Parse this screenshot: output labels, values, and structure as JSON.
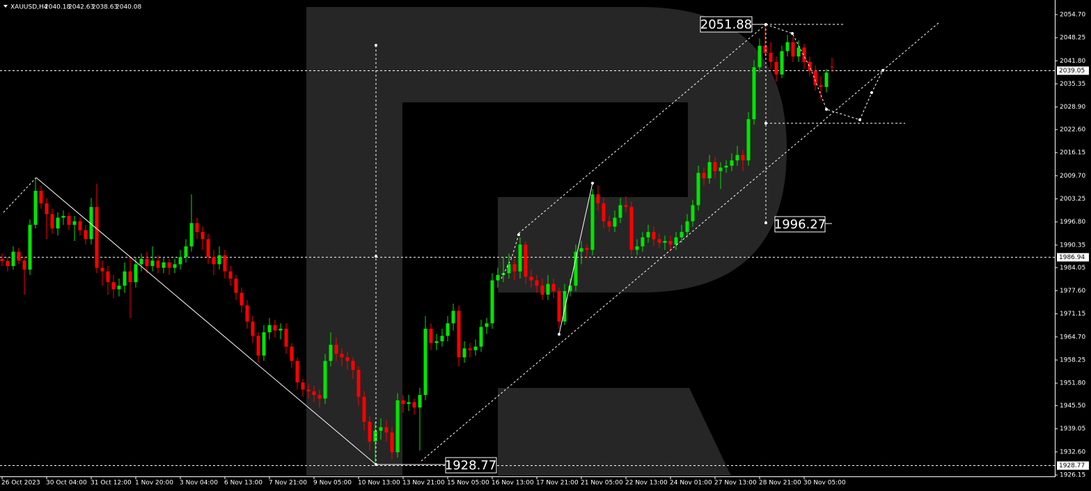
{
  "chart_data": {
    "type": "candlestick",
    "title": "XAUUSD,H4",
    "bull_color": "#00e600",
    "bear_color": "#ff0000",
    "ylim": [
      1925.96,
      2058.78
    ],
    "yticks": [
      {
        "value": 2054.7,
        "label": "2054.70"
      },
      2048.25,
      {
        "value": 2041.8,
        "label": "2041.80"
      },
      2035.35,
      {
        "value": 2028.9,
        "label": "2028.90"
      },
      {
        "value": 2022.6,
        "label": "2022.60"
      },
      2016.15,
      {
        "value": 2009.7,
        "label": "2009.70"
      },
      2003.25,
      {
        "value": 1996.8,
        "label": "1996.80"
      },
      1990.35,
      1984.05,
      {
        "value": 1977.6,
        "label": "1977.60"
      },
      1971.15,
      {
        "value": 1964.7,
        "label": "1964.70"
      },
      1958.25,
      {
        "value": 1951.8,
        "label": "1951.80"
      },
      {
        "value": 1945.5,
        "label": "1945.50"
      },
      1939.05,
      {
        "value": 1932.6,
        "label": "1932.60"
      },
      1926.15
    ],
    "categories": [
      "26 Oct 2023",
      null,
      null,
      null,
      null,
      null,
      null,
      null,
      "30 Oct 04:00",
      null,
      null,
      null,
      null,
      null,
      null,
      null,
      "31 Oct 12:00",
      null,
      null,
      null,
      null,
      null,
      null,
      null,
      "1 Nov 20:00",
      null,
      null,
      null,
      null,
      null,
      null,
      null,
      "3 Nov 04:00",
      null,
      null,
      null,
      null,
      null,
      null,
      null,
      "6 Nov 13:00",
      null,
      null,
      null,
      null,
      null,
      null,
      null,
      "7 Nov 21:00",
      null,
      null,
      null,
      null,
      null,
      null,
      null,
      "9 Nov 05:00",
      null,
      null,
      null,
      null,
      null,
      null,
      null,
      "10 Nov 13:00",
      null,
      null,
      null,
      null,
      null,
      null,
      null,
      "13 Nov 21:00",
      null,
      null,
      null,
      null,
      null,
      null,
      null,
      "15 Nov 05:00",
      null,
      null,
      null,
      null,
      null,
      null,
      null,
      "16 Nov 13:00",
      null,
      null,
      null,
      null,
      null,
      null,
      null,
      "17 Nov 21:00",
      null,
      null,
      null,
      null,
      null,
      null,
      null,
      "21 Nov 05:00",
      null,
      null,
      null,
      null,
      null,
      null,
      null,
      "22 Nov 13:00",
      null,
      null,
      null,
      null,
      null,
      null,
      null,
      "24 Nov 01:00",
      null,
      null,
      null,
      null,
      null,
      null,
      null,
      "27 Nov 13:00",
      null,
      null,
      null,
      null,
      null,
      null,
      null,
      "28 Nov 21:00",
      null,
      null,
      null,
      null,
      null,
      null,
      null,
      "30 Nov 05:00",
      null,
      null,
      null,
      null,
      null
    ],
    "ohlc": [
      [
        1986.5,
        1988,
        1984.5,
        1985.9
      ],
      [
        1985.9,
        1987,
        1983,
        1984.5
      ],
      [
        1984.5,
        1990,
        1983.5,
        1988.5
      ],
      [
        1988.5,
        1989.5,
        1985,
        1986
      ],
      [
        1986,
        1987,
        1976.5,
        1983.5
      ],
      [
        1983.5,
        1997.5,
        1982,
        1996
      ],
      [
        1996,
        2009.2,
        1995,
        2005.5
      ],
      [
        2005.5,
        2007,
        2000.5,
        2002
      ],
      [
        2002,
        2003.5,
        1992,
        1999
      ],
      [
        1999,
        2000.5,
        1993.5,
        1995
      ],
      [
        1995,
        1999.5,
        1993,
        1998
      ],
      [
        1998,
        2000,
        1996,
        1998.5
      ],
      [
        1998.5,
        1999.5,
        1994.5,
        1996
      ],
      [
        1996,
        1998.5,
        1991.5,
        1997
      ],
      [
        1997,
        1998,
        1993,
        1994.5
      ],
      [
        1994.5,
        1996,
        1990.5,
        1992
      ],
      [
        1992,
        2003.5,
        1990.5,
        2001
      ],
      [
        2001,
        2007.5,
        1982.5,
        1984
      ],
      [
        1984,
        1986,
        1979,
        1983
      ],
      [
        1983,
        1984.5,
        1976.5,
        1980
      ],
      [
        1980,
        1982,
        1975.5,
        1978
      ],
      [
        1978,
        1981,
        1976,
        1979
      ],
      [
        1979,
        1985.5,
        1977,
        1983
      ],
      [
        1983,
        1987,
        1970,
        1980
      ],
      [
        1980,
        1987,
        1978.5,
        1985
      ],
      [
        1985,
        1988,
        1983,
        1986.5
      ],
      [
        1986.5,
        1988.5,
        1982.5,
        1984.5
      ],
      [
        1984.5,
        1990,
        1983,
        1986
      ],
      [
        1986,
        1987.5,
        1982.5,
        1984
      ],
      [
        1984,
        1987,
        1982.5,
        1985.5
      ],
      [
        1985.5,
        1986.5,
        1982,
        1984
      ],
      [
        1984,
        1986.5,
        1982.5,
        1985
      ],
      [
        1985,
        1989,
        1983.5,
        1987
      ],
      [
        1987,
        1992,
        1985.5,
        1990
      ],
      [
        1990,
        2004.5,
        1988.5,
        1996.5
      ],
      [
        1996.5,
        1998,
        1992,
        1994
      ],
      [
        1994,
        1995.5,
        1989,
        1992
      ],
      [
        1992,
        1993.5,
        1985,
        1987
      ],
      [
        1987,
        1989,
        1982,
        1985
      ],
      [
        1985,
        1990,
        1983.5,
        1987.5
      ],
      [
        1987.5,
        1989,
        1981,
        1983
      ],
      [
        1983,
        1984.5,
        1979,
        1981
      ],
      [
        1981,
        1982,
        1975,
        1977
      ],
      [
        1977,
        1978.5,
        1971.5,
        1973.5
      ],
      [
        1973.5,
        1975,
        1967,
        1969
      ],
      [
        1969,
        1970.5,
        1963,
        1965
      ],
      [
        1965,
        1966,
        1957.5,
        1959.5
      ],
      [
        1959.5,
        1968,
        1958,
        1966
      ],
      [
        1966,
        1970,
        1964,
        1968
      ],
      [
        1968,
        1969.5,
        1964.5,
        1966.5
      ],
      [
        1966.5,
        1968.5,
        1964,
        1967
      ],
      [
        1967,
        1968.5,
        1960,
        1962
      ],
      [
        1962,
        1963,
        1956,
        1958
      ],
      [
        1958,
        1959,
        1950,
        1952
      ],
      [
        1952,
        1953,
        1948,
        1950
      ],
      [
        1950,
        1951.5,
        1947.5,
        1949.5
      ],
      [
        1949.5,
        1951,
        1946.5,
        1948.5
      ],
      [
        1948.5,
        1950,
        1945,
        1947.5
      ],
      [
        1947.5,
        1960,
        1946,
        1958
      ],
      [
        1958,
        1966,
        1956.5,
        1962.5
      ],
      [
        1962.5,
        1964.5,
        1958,
        1960
      ],
      [
        1960,
        1961.5,
        1956.5,
        1959
      ],
      [
        1959,
        1960.5,
        1955.5,
        1958
      ],
      [
        1958,
        1959,
        1953,
        1955.5
      ],
      [
        1955.5,
        1956.5,
        1945.5,
        1948
      ],
      [
        1948,
        1949.5,
        1938.5,
        1941
      ],
      [
        1941,
        1942.5,
        1933,
        1935.5
      ],
      [
        1935.5,
        1941,
        1928.77,
        1938.5
      ],
      [
        1938.5,
        1942,
        1936,
        1939.5
      ],
      [
        1939.5,
        1941.5,
        1935.5,
        1938
      ],
      [
        1938,
        1939.5,
        1930.5,
        1932.5
      ],
      [
        1932.5,
        1949,
        1931,
        1947
      ],
      [
        1947,
        1948.5,
        1943.5,
        1946
      ],
      [
        1946,
        1948.5,
        1944,
        1946.5
      ],
      [
        1946.5,
        1947.5,
        1943,
        1945
      ],
      [
        1945,
        1950.5,
        1933,
        1948.5
      ],
      [
        1948.5,
        1970.5,
        1947,
        1967
      ],
      [
        1967,
        1968.5,
        1961,
        1963
      ],
      [
        1963,
        1965.5,
        1961,
        1963.5
      ],
      [
        1963.5,
        1967,
        1962,
        1965
      ],
      [
        1965,
        1970.5,
        1963.5,
        1968.5
      ],
      [
        1968.5,
        1974,
        1966.5,
        1972
      ],
      [
        1972,
        1973.5,
        1956.5,
        1959
      ],
      [
        1959,
        1963.5,
        1957.5,
        1961.5
      ],
      [
        1961.5,
        1963,
        1959,
        1961
      ],
      [
        1961,
        1964,
        1959.5,
        1962
      ],
      [
        1962,
        1969.5,
        1960.5,
        1967.5
      ],
      [
        1967.5,
        1970,
        1965.5,
        1968.5
      ],
      [
        1968.5,
        1982.5,
        1967,
        1980.5
      ],
      [
        1980.5,
        1984,
        1978.5,
        1982
      ],
      [
        1982,
        1987,
        1980,
        1982.5
      ],
      [
        1982.5,
        1988,
        1981,
        1985
      ],
      [
        1985,
        1986.5,
        1980.5,
        1983
      ],
      [
        1983,
        1992.5,
        1981,
        1990.5
      ],
      [
        1990.5,
        1991.5,
        1979.5,
        1981.5
      ],
      [
        1981.5,
        1983.5,
        1978.5,
        1980.5
      ],
      [
        1980.5,
        1982,
        1977,
        1979
      ],
      [
        1979,
        1981,
        1975,
        1976.5
      ],
      [
        1976.5,
        1982,
        1975,
        1979.5
      ],
      [
        1979.5,
        1981,
        1975.5,
        1977.5
      ],
      [
        1977.5,
        1978.5,
        1967,
        1969
      ],
      [
        1969,
        1979.5,
        1968,
        1977.5
      ],
      [
        1977.5,
        1981,
        1976,
        1979
      ],
      [
        1979,
        1990.5,
        1977.5,
        1988.5
      ],
      [
        1988.5,
        1991.5,
        1985,
        1989.5
      ],
      [
        1989.5,
        1990.5,
        1986.5,
        1989
      ],
      [
        1989,
        2006,
        1987.5,
        2004.5
      ],
      [
        2004.5,
        2007,
        2000,
        2002
      ],
      [
        2002,
        2003.5,
        1995,
        1997
      ],
      [
        1997,
        1998.5,
        1994,
        1995.5
      ],
      [
        1995.5,
        2000,
        1994,
        1998
      ],
      [
        1998,
        2003.5,
        1996.5,
        2001.5
      ],
      [
        2001.5,
        2004,
        1999.5,
        2001
      ],
      [
        2001,
        2002.5,
        1987.5,
        1989
      ],
      [
        1989,
        1992,
        1987.5,
        1990
      ],
      [
        1990,
        1994,
        1988.5,
        1992.5
      ],
      [
        1992.5,
        1996,
        1991,
        1994
      ],
      [
        1994,
        1995.5,
        1990,
        1992
      ],
      [
        1992,
        1993.5,
        1989.5,
        1991
      ],
      [
        1991,
        1993,
        1989,
        1991.5
      ],
      [
        1991.5,
        1993,
        1988.5,
        1990.5
      ],
      [
        1990.5,
        1994,
        1989,
        1992.5
      ],
      [
        1992.5,
        1996,
        1991,
        1994
      ],
      [
        1994,
        1999,
        1992.5,
        1997
      ],
      [
        1997,
        2003,
        1995.5,
        2001.5
      ],
      [
        2001.5,
        2012.5,
        2000,
        2010.5
      ],
      [
        2010.5,
        2012,
        2007,
        2009
      ],
      [
        2009,
        2015.5,
        2007.5,
        2013.5
      ],
      [
        2013.5,
        2015,
        2009,
        2011
      ],
      [
        2011,
        2013.5,
        2006,
        2012
      ],
      [
        2012,
        2014,
        2010.5,
        2012.5
      ],
      [
        2012.5,
        2016,
        2011,
        2014
      ],
      [
        2014,
        2018,
        2012.5,
        2015.5
      ],
      [
        2015.5,
        2017,
        2011,
        2014
      ],
      [
        2014,
        2027.5,
        2012.5,
        2025.5
      ],
      [
        2025.5,
        2042,
        2024,
        2040
      ],
      [
        2040,
        2048,
        2038.5,
        2046
      ],
      [
        2046,
        2051.88,
        2043,
        2044
      ],
      [
        2044,
        2047,
        2039.5,
        2041.5
      ],
      [
        2041.5,
        2043,
        2036,
        2038
      ],
      [
        2038,
        2046,
        2037,
        2044.5
      ],
      [
        2044.5,
        2049,
        2043,
        2047
      ],
      [
        2047,
        2048.5,
        2041.5,
        2043
      ],
      [
        2043,
        2047.5,
        2041.5,
        2045.5
      ],
      [
        2045.5,
        2046.5,
        2039.5,
        2041.5
      ],
      [
        2041.5,
        2043,
        2037.5,
        2039
      ],
      [
        2039,
        2040.5,
        2033.5,
        2035
      ],
      [
        2035,
        2037.5,
        2031,
        2034.5
      ],
      [
        2034.5,
        2039.5,
        2033,
        2038.5
      ],
      [
        2040.18,
        2042.63,
        2038.63,
        2040.08
      ]
    ],
    "levels": [
      2039.05,
      1986.94,
      1928.77
    ],
    "target": 1996.27
  }
}
